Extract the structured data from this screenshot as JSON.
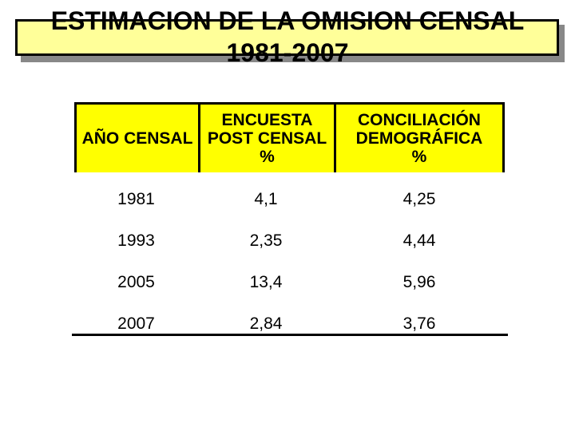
{
  "slide": {
    "background_color": "#FFFFFF",
    "title": {
      "line1": "ESTIMACION DE LA OMISION CENSAL",
      "line2": "1981-2007",
      "box_fill_color": "#FFFF99",
      "box_border_color": "#000000",
      "shadow_color": "#888888"
    },
    "table": {
      "header_fill_color": "#FFFF00",
      "headers": [
        "AÑO CENSAL",
        "ENCUESTA\nPOST CENSAL\n%",
        "CONCILIACIÓN\nDEMOGRÁFICA\n%"
      ],
      "rows": [
        [
          "1981",
          "4,1",
          "4,25"
        ],
        [
          "1993",
          "2,35",
          "4,44"
        ],
        [
          "2005",
          "13,4",
          "5,96"
        ],
        [
          "2007",
          "2,84",
          "3,76"
        ]
      ]
    }
  },
  "chart_data": {
    "type": "table",
    "title": "ESTIMACION DE LA OMISION CENSAL 1981-2007",
    "columns": [
      "AÑO CENSAL",
      "ENCUESTA POST CENSAL %",
      "CONCILIACIÓN DEMOGRÁFICA %"
    ],
    "rows": [
      [
        "1981",
        4.1,
        4.25
      ],
      [
        "1993",
        2.35,
        4.44
      ],
      [
        "2005",
        13.4,
        5.96
      ],
      [
        "2007",
        2.84,
        3.76
      ]
    ],
    "notes": "decimal comma formatting as shown on slide"
  }
}
